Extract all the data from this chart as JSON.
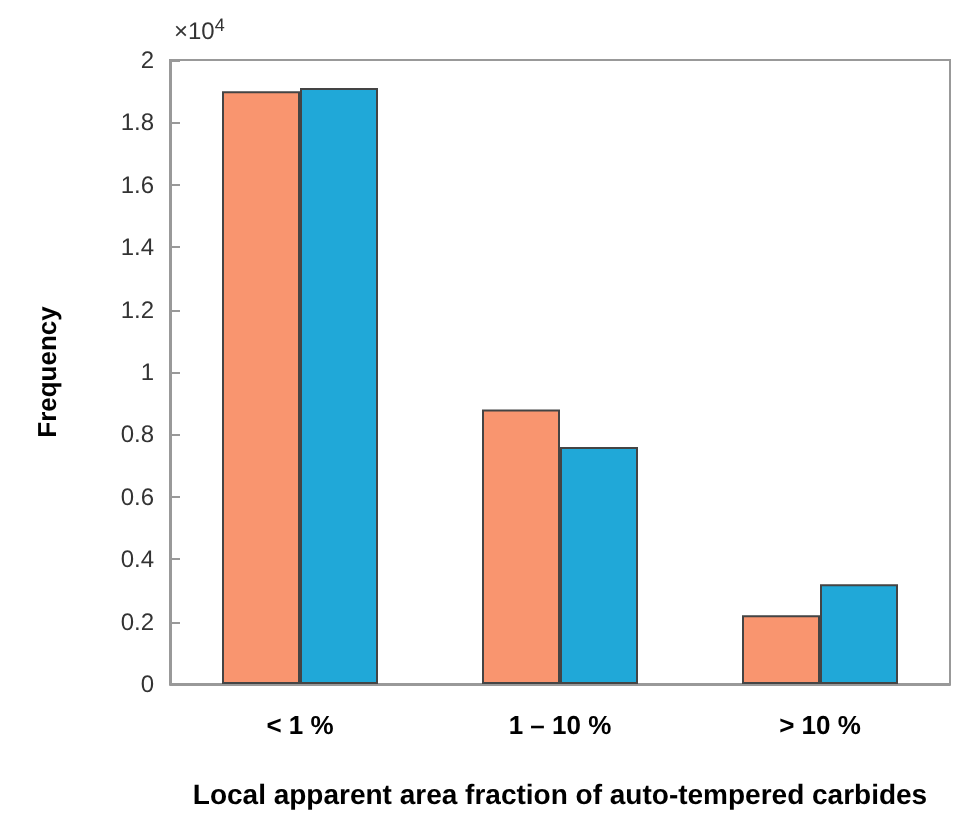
{
  "chart_data": {
    "type": "bar",
    "xlabel": "Local apparent area fraction of auto-tempered carbides",
    "ylabel": "Frequency",
    "categories": [
      "< 1 %",
      "1 – 10 %",
      "> 10 %"
    ],
    "series": [
      {
        "color": "#f9956f",
        "values": [
          1.9,
          0.88,
          0.22
        ]
      },
      {
        "color": "#20a8d8",
        "values": [
          1.91,
          0.76,
          0.32
        ]
      }
    ],
    "ylim": [
      0,
      2
    ],
    "yticks": [
      0,
      0.2,
      0.4,
      0.6,
      0.8,
      1,
      1.2,
      1.4,
      1.6,
      1.8,
      2
    ],
    "annotations": [
      "×10$^{4}$"
    ]
  }
}
